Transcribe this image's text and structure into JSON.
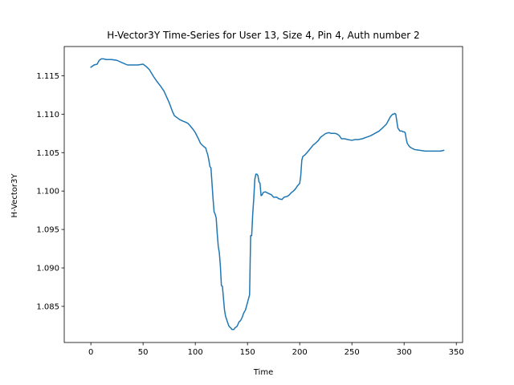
{
  "chart_data": {
    "type": "line",
    "title": "H-Vector3Y Time-Series for User 13, Size 4, Pin 4, Auth number 2",
    "xlabel": "Time",
    "ylabel": "H-Vector3Y",
    "xlim": [
      -25.5,
      356
    ],
    "ylim": [
      1.0803,
      1.1188
    ],
    "xticks": [
      0,
      50,
      100,
      150,
      200,
      250,
      300,
      350
    ],
    "yticks": [
      1.085,
      1.09,
      1.095,
      1.1,
      1.105,
      1.11,
      1.115
    ],
    "ytick_labels": [
      "1.085",
      "1.090",
      "1.095",
      "1.100",
      "1.105",
      "1.110",
      "1.115"
    ],
    "grid": false,
    "line_color": "#1f77b4",
    "series": [
      {
        "x": [
          0,
          3,
          6,
          8,
          10,
          12,
          15,
          20,
          25,
          30,
          35,
          40,
          45,
          50,
          53,
          56,
          60,
          63,
          67,
          70,
          73,
          75,
          78,
          80,
          85,
          88,
          90,
          93,
          95,
          98,
          100,
          103,
          105,
          108,
          110,
          111,
          112,
          113,
          114,
          115,
          116,
          117,
          118,
          119,
          120,
          121,
          122,
          123,
          124,
          125,
          126,
          127,
          128,
          129,
          130,
          131,
          132,
          133,
          134,
          135,
          136,
          137,
          138,
          139,
          140,
          141,
          142,
          143,
          144,
          145,
          146,
          147,
          148,
          149,
          150,
          151,
          152,
          153,
          154,
          155,
          156,
          157,
          158,
          159,
          160,
          161,
          162,
          163,
          164,
          165,
          167,
          170,
          173,
          175,
          178,
          180,
          183,
          185,
          188,
          190,
          192,
          194,
          196,
          198,
          200,
          201,
          202,
          203,
          205,
          207,
          210,
          213,
          215,
          218,
          220,
          222,
          225,
          228,
          230,
          232,
          234,
          236,
          238,
          240,
          243,
          246,
          250,
          253,
          256,
          260,
          264,
          268,
          272,
          276,
          280,
          283,
          285,
          287,
          289,
          290,
          291,
          292,
          294,
          296,
          298,
          299,
          300,
          301,
          302,
          303,
          305,
          307,
          310,
          315,
          320,
          325,
          330,
          335,
          338
        ],
        "y": [
          1.1161,
          1.1164,
          1.1165,
          1.117,
          1.1172,
          1.1172,
          1.1171,
          1.1171,
          1.117,
          1.1167,
          1.1164,
          1.1164,
          1.1164,
          1.1165,
          1.1162,
          1.1158,
          1.1149,
          1.1143,
          1.1136,
          1.113,
          1.1121,
          1.1115,
          1.1104,
          1.1098,
          1.1093,
          1.1091,
          1.109,
          1.1088,
          1.1085,
          1.108,
          1.1076,
          1.1068,
          1.1062,
          1.1058,
          1.1056,
          1.1051,
          1.1047,
          1.104,
          1.1032,
          1.103,
          1.101,
          1.099,
          1.0973,
          1.097,
          1.0965,
          1.0945,
          1.0928,
          1.092,
          1.0903,
          1.0877,
          1.0876,
          1.086,
          1.0845,
          1.0837,
          1.0833,
          1.0829,
          1.0825,
          1.0823,
          1.0822,
          1.082,
          1.082,
          1.082,
          1.0822,
          1.0823,
          1.0824,
          1.0827,
          1.083,
          1.0831,
          1.0833,
          1.0836,
          1.084,
          1.0843,
          1.0845,
          1.085,
          1.0855,
          1.086,
          1.0865,
          1.0942,
          1.0942,
          1.097,
          1.099,
          1.1015,
          1.1022,
          1.1022,
          1.102,
          1.1012,
          1.101,
          1.0994,
          1.0995,
          1.0998,
          1.0999,
          1.0997,
          1.0995,
          1.0992,
          1.0992,
          1.099,
          1.0989,
          1.0992,
          1.0993,
          1.0995,
          1.0998,
          1.1,
          1.1003,
          1.1007,
          1.101,
          1.102,
          1.104,
          1.1045,
          1.1047,
          1.105,
          1.1055,
          1.106,
          1.1062,
          1.1066,
          1.107,
          1.1072,
          1.1075,
          1.1076,
          1.1075,
          1.1075,
          1.1075,
          1.1074,
          1.1072,
          1.1068,
          1.1068,
          1.1067,
          1.1066,
          1.1067,
          1.1067,
          1.1068,
          1.107,
          1.1072,
          1.1075,
          1.1078,
          1.1083,
          1.1087,
          1.1092,
          1.1097,
          1.11,
          1.11,
          1.1101,
          1.11,
          1.1082,
          1.1078,
          1.1078,
          1.1077,
          1.1077,
          1.1076,
          1.1068,
          1.1062,
          1.1058,
          1.1056,
          1.1054,
          1.1053,
          1.1052,
          1.1052,
          1.1052,
          1.1052,
          1.1053
        ]
      }
    ]
  }
}
